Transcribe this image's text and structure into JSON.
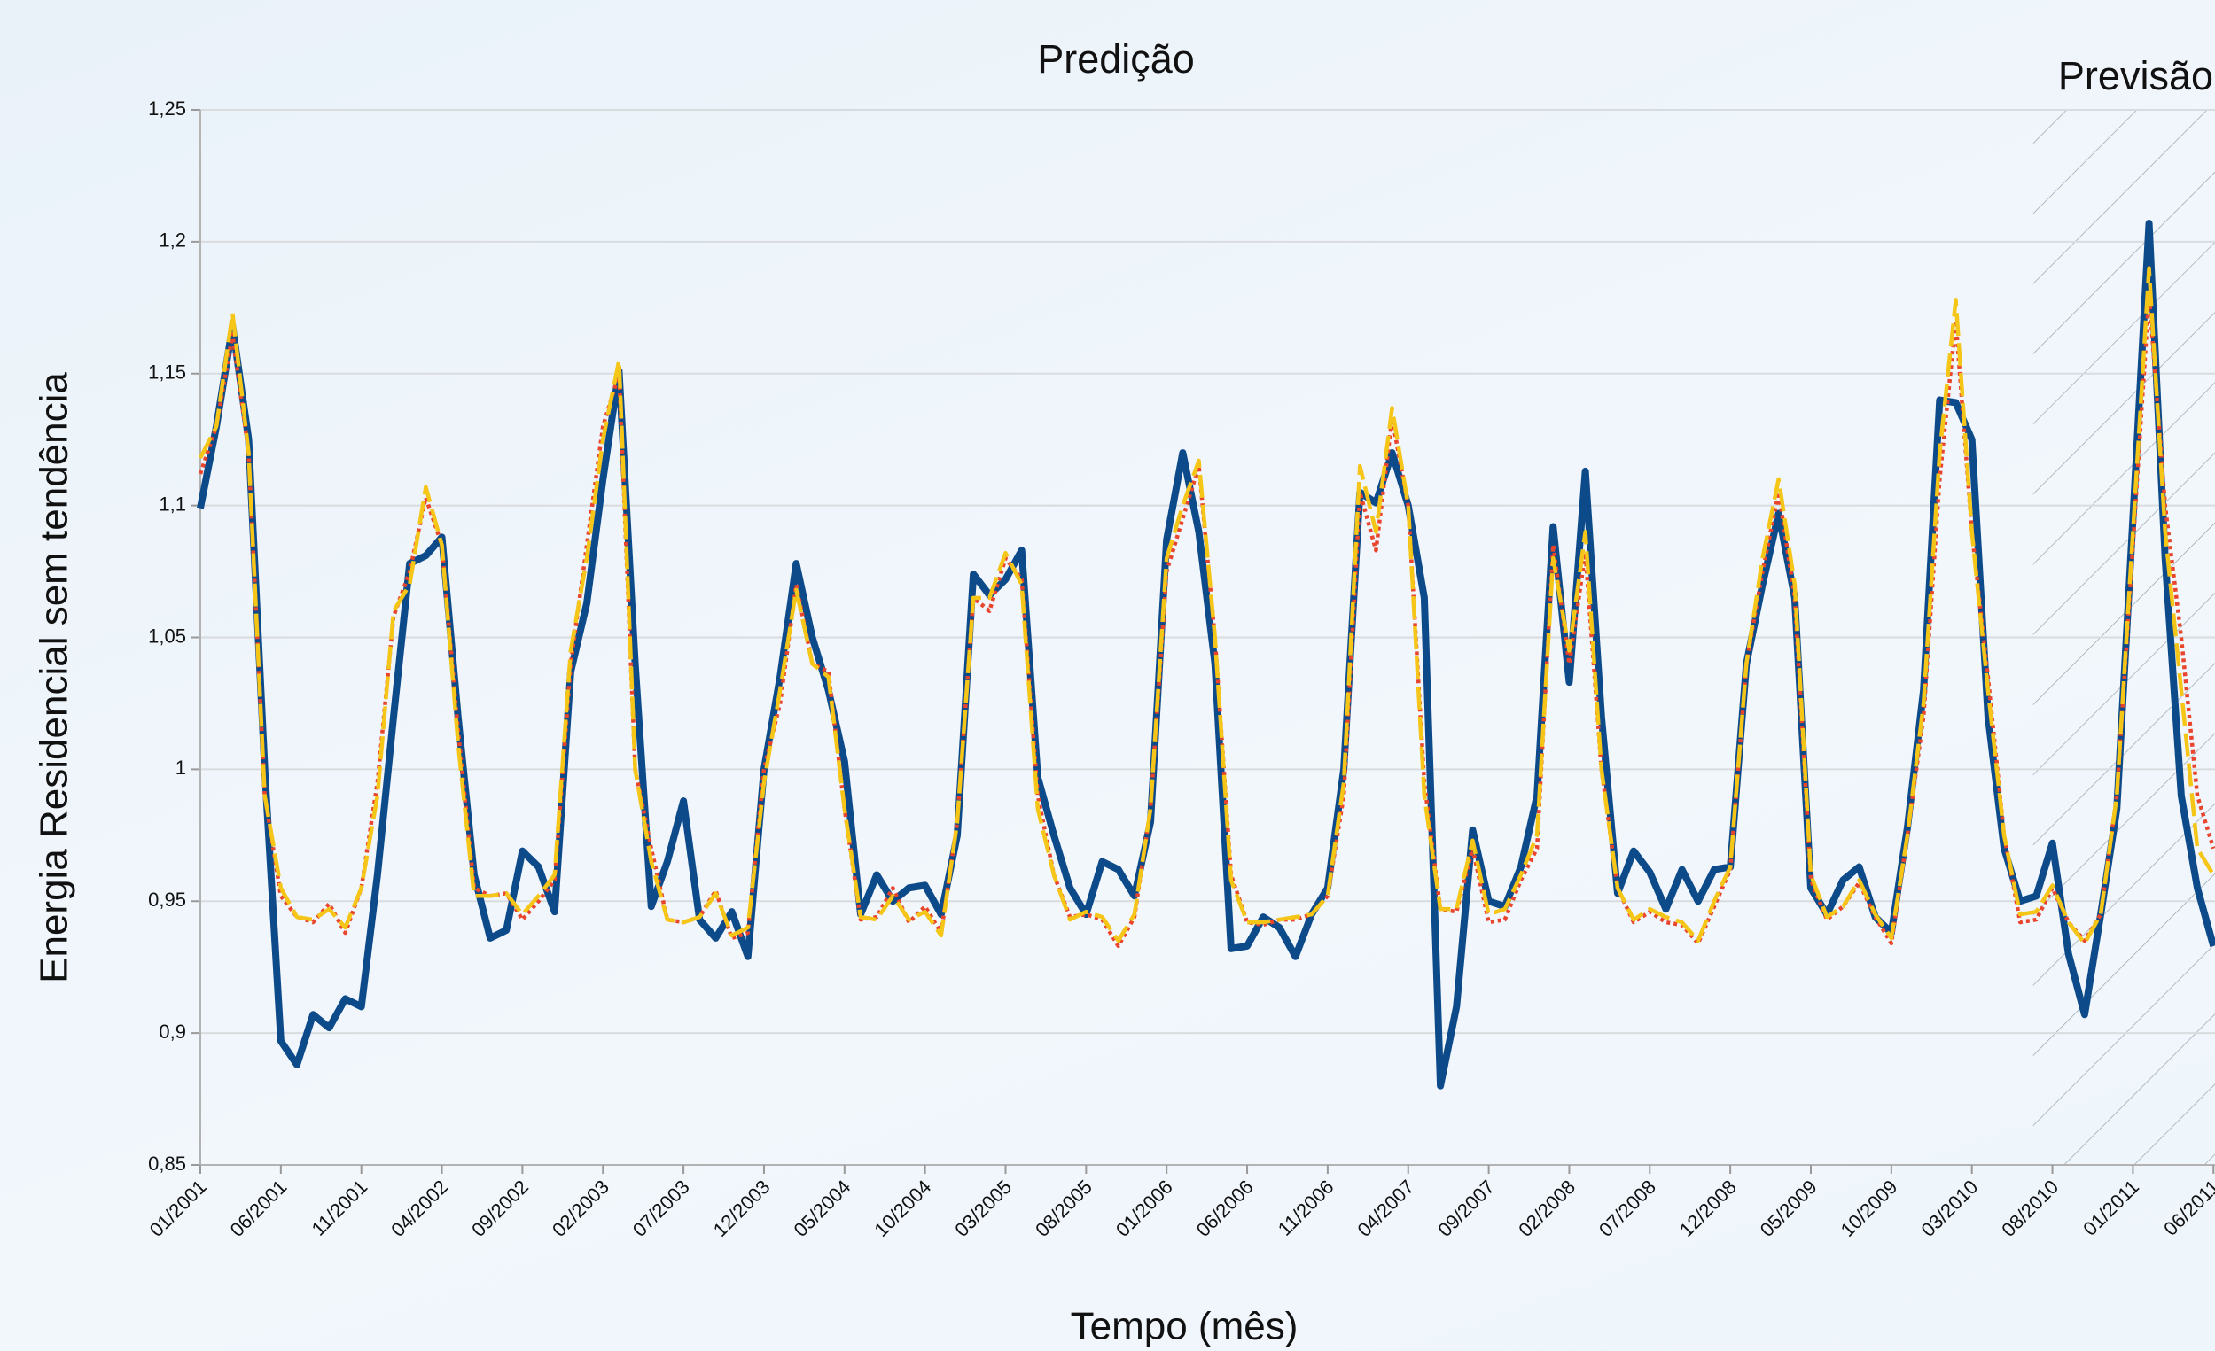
{
  "chart_data": {
    "type": "line",
    "titles": [
      "Predição",
      "Previsão"
    ],
    "x_label": "Tempo (mês)",
    "y_label": "Energia Residencial sem tendência",
    "forecast_from": 113.8,
    "categories": [
      "01/2001",
      null,
      null,
      null,
      null,
      "06/2001",
      null,
      null,
      null,
      null,
      "11/2001",
      null,
      null,
      null,
      null,
      "04/2002",
      null,
      null,
      null,
      null,
      "09/2002",
      null,
      null,
      null,
      null,
      "02/2003",
      null,
      null,
      null,
      null,
      "07/2003",
      null,
      null,
      null,
      null,
      "12/2003",
      null,
      null,
      null,
      null,
      "05/2004",
      null,
      null,
      null,
      null,
      "10/2004",
      null,
      null,
      null,
      null,
      "03/2005",
      null,
      null,
      null,
      null,
      "08/2005",
      null,
      null,
      null,
      null,
      "01/2006",
      null,
      null,
      null,
      null,
      "06/2006",
      null,
      null,
      null,
      null,
      "11/2006",
      null,
      null,
      null,
      null,
      "04/2007",
      null,
      null,
      null,
      null,
      "09/2007",
      null,
      null,
      null,
      null,
      "02/2008",
      null,
      null,
      null,
      null,
      "07/2008",
      null,
      null,
      null,
      null,
      "12/2008",
      null,
      null,
      null,
      null,
      "05/2009",
      null,
      null,
      null,
      null,
      "10/2009",
      null,
      null,
      null,
      null,
      "03/2010",
      null,
      null,
      null,
      null,
      "08/2010",
      null,
      null,
      null,
      null,
      "01/2011",
      null,
      null,
      null,
      null,
      "06/2011"
    ],
    "ylim": [
      0.85,
      1.25
    ],
    "yticks": [
      {
        "value": 0.85,
        "label": "0,85"
      },
      {
        "value": 0.9,
        "label": "0,9"
      },
      {
        "value": 0.95,
        "label": "0,95"
      },
      1,
      {
        "value": 1.05,
        "label": "1,05"
      },
      {
        "value": 1.1,
        "label": "1,1"
      },
      {
        "value": 1.15,
        "label": "1,15"
      },
      {
        "value": 1.2,
        "label": "1,2"
      },
      {
        "value": 1.25,
        "label": "1,25"
      }
    ],
    "grid": true,
    "series": [
      {
        "color": "#0d4a8a",
        "dash": "solid",
        "values": [
          1.099,
          1.13,
          1.168,
          1.125,
          1.0,
          0.897,
          0.888,
          0.907,
          0.902,
          0.913,
          0.91,
          0.96,
          1.02,
          1.078,
          1.081,
          1.088,
          1.02,
          0.96,
          0.936,
          0.939,
          0.969,
          0.963,
          0.946,
          1.037,
          1.063,
          1.11,
          1.151,
          1.04,
          0.948,
          0.965,
          0.988,
          0.943,
          0.936,
          0.946,
          0.929,
          1.0,
          1.035,
          1.078,
          1.05,
          1.03,
          1.003,
          0.945,
          0.96,
          0.95,
          0.955,
          0.956,
          0.945,
          0.975,
          1.074,
          1.066,
          1.072,
          1.083,
          0.997,
          0.975,
          0.955,
          0.945,
          0.965,
          0.962,
          0.952,
          0.98,
          1.087,
          1.12,
          1.09,
          1.04,
          0.932,
          0.933,
          0.944,
          0.94,
          0.929,
          0.945,
          0.955,
          1.0,
          1.105,
          1.101,
          1.12,
          1.1,
          1.065,
          0.88,
          0.91,
          0.977,
          0.95,
          0.948,
          0.963,
          0.99,
          1.092,
          1.033,
          1.113,
          1.02,
          0.953,
          0.969,
          0.961,
          0.947,
          0.962,
          0.95,
          0.962,
          0.963,
          1.04,
          1.07,
          1.097,
          1.065,
          0.955,
          0.945,
          0.958,
          0.963,
          0.944,
          0.938,
          0.978,
          1.03,
          1.14,
          1.139,
          1.125,
          1.02,
          0.97,
          0.95,
          0.952,
          0.972,
          0.93,
          0.907,
          0.945,
          0.985,
          1.095,
          1.207,
          1.08,
          0.99,
          0.955,
          0.933
        ]
      },
      {
        "color": "#e8452c",
        "dash": "dotted",
        "values": [
          1.112,
          1.13,
          1.165,
          1.12,
          0.99,
          0.952,
          0.944,
          0.942,
          0.949,
          0.938,
          0.955,
          0.995,
          1.058,
          1.075,
          1.103,
          1.085,
          1.015,
          0.955,
          0.952,
          0.953,
          0.943,
          0.95,
          0.958,
          1.04,
          1.085,
          1.13,
          1.15,
          1.0,
          0.97,
          0.943,
          0.942,
          0.944,
          0.954,
          0.936,
          0.938,
          1.0,
          1.025,
          1.07,
          1.04,
          1.037,
          0.985,
          0.943,
          0.944,
          0.955,
          0.942,
          0.948,
          0.938,
          0.98,
          1.065,
          1.06,
          1.08,
          1.072,
          0.99,
          0.96,
          0.944,
          0.945,
          0.943,
          0.933,
          0.944,
          0.985,
          1.075,
          1.095,
          1.115,
          1.05,
          0.96,
          0.942,
          0.941,
          0.943,
          0.943,
          0.945,
          0.952,
          0.99,
          1.105,
          1.083,
          1.133,
          1.1,
          0.995,
          0.947,
          0.946,
          0.97,
          0.942,
          0.943,
          0.958,
          0.97,
          1.085,
          1.04,
          1.082,
          1.0,
          0.955,
          0.942,
          0.946,
          0.942,
          0.941,
          0.934,
          0.948,
          0.962,
          1.04,
          1.075,
          1.105,
          1.065,
          0.958,
          0.943,
          0.948,
          0.957,
          0.944,
          0.934,
          0.975,
          1.02,
          1.11,
          1.17,
          1.09,
          1.035,
          0.975,
          0.942,
          0.943,
          0.955,
          0.942,
          0.935,
          0.945,
          0.99,
          1.085,
          1.18,
          1.1,
          1.05,
          0.99,
          0.97
        ]
      },
      {
        "color": "#f5c518",
        "dash": "dashed",
        "values": [
          1.118,
          1.13,
          1.173,
          1.12,
          0.99,
          0.955,
          0.944,
          0.943,
          0.947,
          0.94,
          0.955,
          0.99,
          1.06,
          1.07,
          1.107,
          1.085,
          1.01,
          0.952,
          0.952,
          0.953,
          0.945,
          0.952,
          0.96,
          1.045,
          1.08,
          1.125,
          1.155,
          1.0,
          0.965,
          0.943,
          0.942,
          0.944,
          0.953,
          0.937,
          0.94,
          0.995,
          1.03,
          1.068,
          1.04,
          1.035,
          0.985,
          0.944,
          0.943,
          0.952,
          0.943,
          0.946,
          0.937,
          0.98,
          1.065,
          1.065,
          1.082,
          1.07,
          0.985,
          0.96,
          0.943,
          0.946,
          0.944,
          0.935,
          0.945,
          0.985,
          1.08,
          1.1,
          1.117,
          1.05,
          0.958,
          0.942,
          0.942,
          0.943,
          0.944,
          0.945,
          0.952,
          0.995,
          1.115,
          1.09,
          1.137,
          1.1,
          0.99,
          0.947,
          0.947,
          0.973,
          0.945,
          0.947,
          0.96,
          0.975,
          1.08,
          1.045,
          1.09,
          1.0,
          0.955,
          0.943,
          0.947,
          0.944,
          0.942,
          0.935,
          0.95,
          0.963,
          1.04,
          1.08,
          1.11,
          1.07,
          0.96,
          0.944,
          0.948,
          0.958,
          0.945,
          0.936,
          0.975,
          1.025,
          1.12,
          1.178,
          1.09,
          1.03,
          0.975,
          0.945,
          0.946,
          0.956,
          0.942,
          0.934,
          0.945,
          0.99,
          1.09,
          1.19,
          1.09,
          1.03,
          0.97,
          0.96
        ]
      }
    ]
  }
}
